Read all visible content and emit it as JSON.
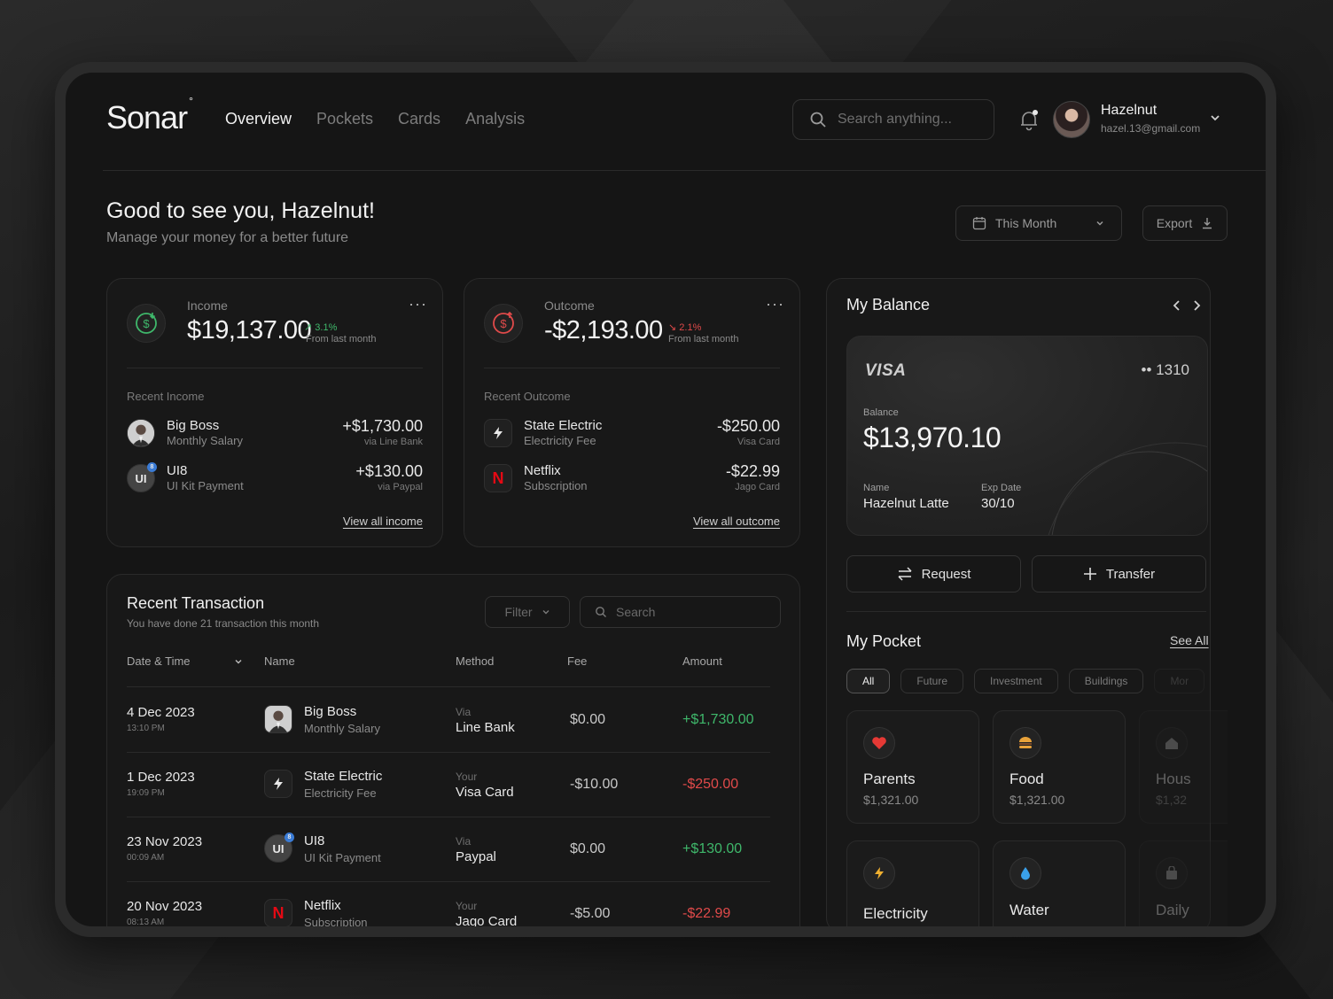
{
  "header": {
    "logo": "Sonar",
    "logo_mark": "°",
    "nav": [
      "Overview",
      "Pockets",
      "Cards",
      "Analysis"
    ],
    "search_placeholder": "Search anything...",
    "user": {
      "name": "Hazelnut",
      "email": "hazel.13@gmail.com"
    }
  },
  "greeting": {
    "title": "Good to see you, Hazelnut!",
    "subtitle": "Manage your money for a better future",
    "period": "This Month",
    "export": "Export"
  },
  "income": {
    "label": "Income",
    "value": "$19,137.00",
    "trend": "3.1%",
    "trend_sub": "From last month",
    "recent_label": "Recent Income",
    "items": [
      {
        "name": "Big Boss",
        "sub": "Monthly Salary",
        "amount": "+$1,730.00",
        "via": "via Line Bank"
      },
      {
        "name": "UI8",
        "sub": "UI Kit Payment",
        "amount": "+$130.00",
        "via": "via Paypal"
      }
    ],
    "link": "View all income"
  },
  "outcome": {
    "label": "Outcome",
    "value": "-$2,193.00",
    "trend": "2.1%",
    "trend_sub": "From last month",
    "recent_label": "Recent Outcome",
    "items": [
      {
        "name": "State Electric",
        "sub": "Electricity Fee",
        "amount": "-$250.00",
        "via": "Visa Card"
      },
      {
        "name": "Netflix",
        "sub": "Subscription",
        "amount": "-$22.99",
        "via": "Jago Card"
      }
    ],
    "link": "View all outcome"
  },
  "transactions": {
    "title": "Recent Transaction",
    "subtitle": "You have done 21 transaction this month",
    "filter": "Filter",
    "search_placeholder": "Search",
    "columns": [
      "Date & Time",
      "Name",
      "Method",
      "Fee",
      "Amount"
    ],
    "rows": [
      {
        "date": "4 Dec 2023",
        "time": "13:10 PM",
        "name": "Big Boss",
        "sub": "Monthly Salary",
        "via": "Via",
        "method": "Line Bank",
        "fee": "$0.00",
        "amount": "+$1,730.00"
      },
      {
        "date": "1 Dec 2023",
        "time": "19:09 PM",
        "name": "State Electric",
        "sub": "Electricity Fee",
        "via": "Your",
        "method": "Visa Card",
        "fee": "-$10.00",
        "amount": "-$250.00"
      },
      {
        "date": "23 Nov 2023",
        "time": "00:09 AM",
        "name": "UI8",
        "sub": "UI Kit Payment",
        "via": "Via",
        "method": "Paypal",
        "fee": "$0.00",
        "amount": "+$130.00"
      },
      {
        "date": "20 Nov 2023",
        "time": "08:13 AM",
        "name": "Netflix",
        "sub": "Subscription",
        "via": "Your",
        "method": "Jago Card",
        "fee": "-$5.00",
        "amount": "-$22.99"
      }
    ]
  },
  "balance": {
    "title": "My Balance",
    "card_brand": "VISA",
    "card_last": "•• 1310",
    "balance_label": "Balance",
    "balance": "$13,970.10",
    "name_label": "Name",
    "name": "Hazelnut Latte",
    "exp_label": "Exp Date",
    "exp": "30/10",
    "request": "Request",
    "transfer": "Transfer"
  },
  "pocket": {
    "title": "My Pocket",
    "see_all": "See All",
    "tabs": [
      "All",
      "Future",
      "Investment",
      "Buildings",
      "Mor"
    ],
    "items": [
      {
        "name": "Parents",
        "value": "$1,321.00",
        "icon": "heart-icon"
      },
      {
        "name": "Food",
        "value": "$1,321.00",
        "icon": "burger-icon"
      },
      {
        "name": "Hous",
        "value": "$1,32",
        "icon": "house-icon"
      },
      {
        "name": "Electricity",
        "value": "",
        "icon": "bolt-icon"
      },
      {
        "name": "Water",
        "value": "",
        "icon": "water-drop-icon"
      },
      {
        "name": "Daily",
        "value": "",
        "icon": "bag-icon"
      }
    ]
  },
  "colors": {
    "accent_positive": "#3fb86b",
    "accent_negative": "#e04a4a",
    "background": "#151515"
  }
}
